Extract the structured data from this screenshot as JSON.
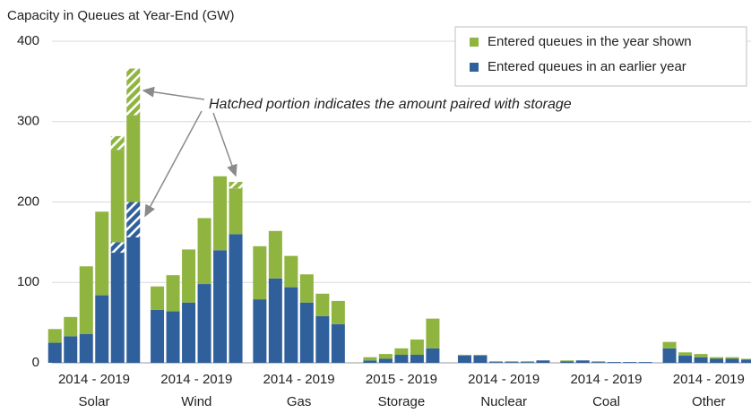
{
  "chart_data": {
    "type": "bar",
    "stacked": true,
    "title": "Capacity in Queues at Year-End (GW)",
    "annotation": "Hatched portion indicates the amount paired with storage",
    "categories": [
      "Solar",
      "Wind",
      "Gas",
      "Storage",
      "Nuclear",
      "Coal",
      "Other"
    ],
    "range_labels": [
      "2014 - 2019",
      "2014 - 2019",
      "2014 - 2019",
      "2015 - 2019",
      "2014 - 2019",
      "2014 - 2019",
      "2014 - 2019"
    ],
    "series": [
      {
        "name": "Entered queues in an earlier year",
        "color": "#2f609c",
        "values": [
          [
            25,
            33,
            36,
            84,
            137,
            156
          ],
          [
            66,
            64,
            75,
            98,
            140,
            160
          ],
          [
            79,
            105,
            94,
            75,
            58,
            48
          ],
          [
            3,
            5,
            10,
            10,
            18
          ],
          [
            9,
            9,
            1,
            1,
            1,
            3
          ],
          [
            2,
            3,
            1,
            1,
            1,
            1
          ],
          [
            18,
            9,
            7,
            5,
            5,
            4
          ]
        ],
        "hatched_values": [
          [
            null,
            null,
            null,
            null,
            13,
            44
          ],
          [
            null,
            null,
            null,
            null,
            null,
            null
          ],
          [
            null,
            null,
            null,
            null,
            null,
            null
          ],
          [
            null,
            null,
            null,
            null,
            null
          ],
          [
            null,
            null,
            null,
            null,
            null,
            null
          ],
          [
            null,
            null,
            null,
            null,
            null,
            null
          ],
          [
            null,
            null,
            null,
            null,
            null,
            null
          ]
        ]
      },
      {
        "name": "Entered queues in the year shown",
        "color": "#8fb440",
        "values": [
          [
            17,
            24,
            84,
            104,
            115,
            108
          ],
          [
            29,
            45,
            66,
            82,
            92,
            57
          ],
          [
            66,
            59,
            39,
            35,
            28,
            29
          ],
          [
            4,
            6,
            8,
            19,
            37
          ],
          [
            1,
            1,
            1,
            1,
            1,
            0
          ],
          [
            1,
            0,
            1,
            0,
            0,
            0
          ],
          [
            8,
            4,
            4,
            2,
            2,
            1
          ]
        ],
        "hatched_values": [
          [
            null,
            null,
            null,
            null,
            17,
            58
          ],
          [
            null,
            null,
            null,
            null,
            null,
            8
          ],
          [
            null,
            null,
            null,
            null,
            null,
            null
          ],
          [
            null,
            null,
            null,
            null,
            null
          ],
          [
            null,
            null,
            null,
            null,
            null,
            null
          ],
          [
            null,
            null,
            null,
            null,
            null,
            null
          ],
          [
            null,
            null,
            null,
            null,
            null,
            null
          ]
        ]
      }
    ],
    "ylim": [
      0,
      400
    ],
    "yticks": [
      0,
      100,
      200,
      300,
      400
    ],
    "grid": true,
    "legend": "top-right"
  }
}
